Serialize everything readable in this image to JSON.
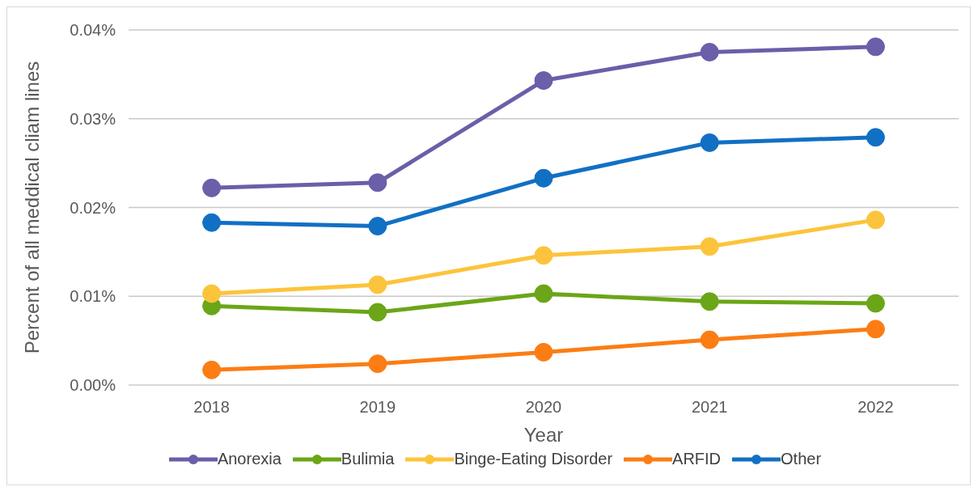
{
  "chart_data": {
    "type": "line",
    "xlabel": "Year",
    "ylabel": "Percent of all meddical cliam lines",
    "categories": [
      "2018",
      "2019",
      "2020",
      "2021",
      "2022"
    ],
    "series": [
      {
        "name": "Anorexia",
        "color": "#6a5fa8",
        "values": [
          0.0222,
          0.0228,
          0.0343,
          0.0375,
          0.0381
        ]
      },
      {
        "name": "Bulimia",
        "color": "#6aa617",
        "values": [
          0.0089,
          0.0082,
          0.0103,
          0.0094,
          0.0092
        ]
      },
      {
        "name": "Binge-Eating Disorder",
        "color": "#fcc43c",
        "values": [
          0.0103,
          0.0113,
          0.0146,
          0.0156,
          0.0186
        ]
      },
      {
        "name": "ARFID",
        "color": "#fb7d14",
        "values": [
          0.0017,
          0.0024,
          0.0037,
          0.0051,
          0.0063
        ]
      },
      {
        "name": "Other",
        "color": "#1170c4",
        "values": [
          0.0183,
          0.0179,
          0.0233,
          0.0273,
          0.0279
        ]
      }
    ],
    "ylim": [
      0,
      0.04
    ],
    "yticks": [
      {
        "value": 0,
        "label": "0.00%"
      },
      {
        "value": 0.01,
        "label": "0.01%"
      },
      {
        "value": 0.02,
        "label": "0.02%"
      },
      {
        "value": 0.03,
        "label": "0.03%"
      },
      {
        "value": 0.04,
        "label": "0.04%"
      }
    ],
    "grid": "y",
    "legend": "bottom",
    "marker": "circle",
    "line_style": "solid"
  }
}
